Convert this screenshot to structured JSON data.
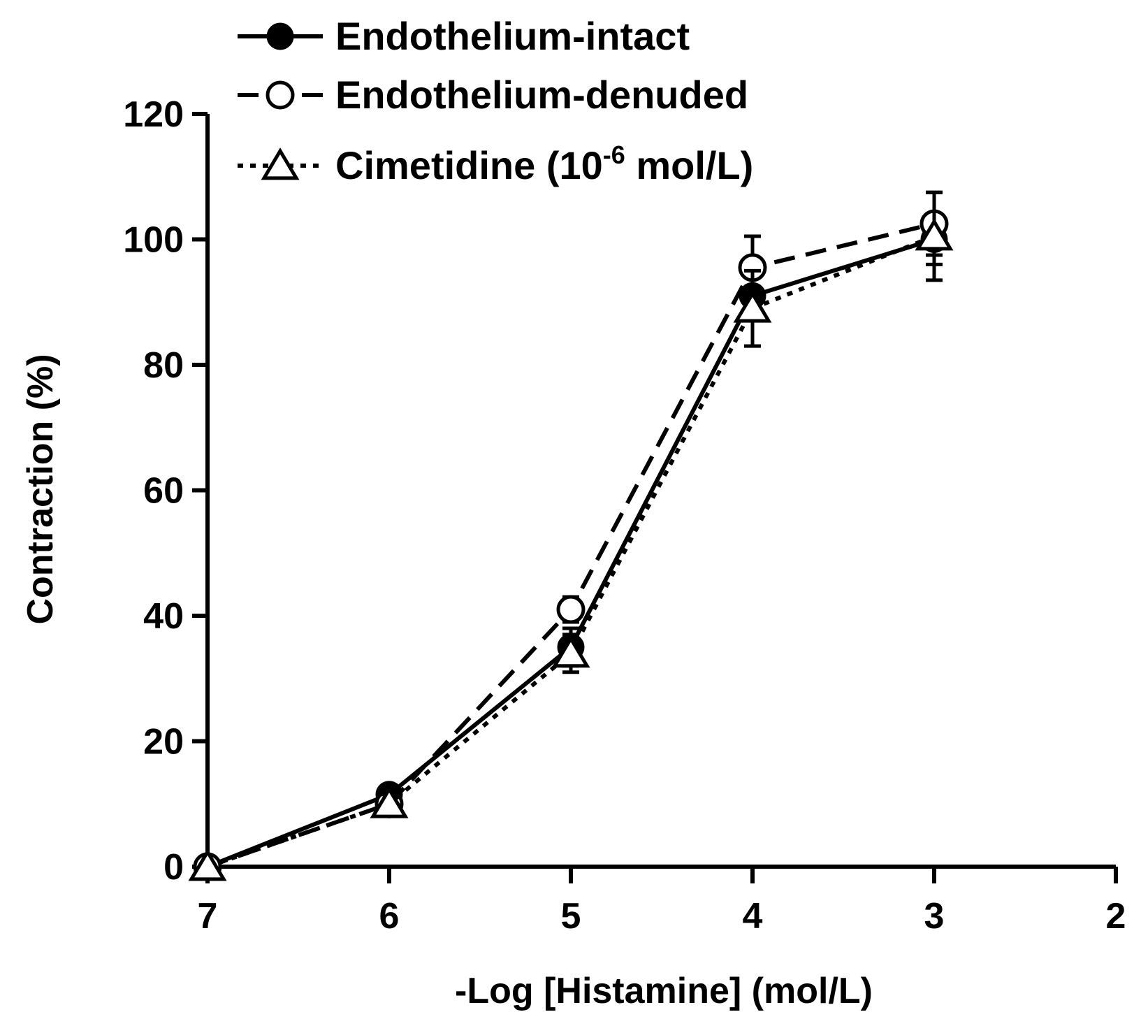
{
  "chart_data": {
    "type": "line",
    "xlabel": "-Log [Histamine] (mol/L)",
    "ylabel": "Contraction (%)",
    "xlim": [
      7,
      2
    ],
    "ylim": [
      0,
      120
    ],
    "x_ticks": [
      "7",
      "6",
      "5",
      "4",
      "3",
      "2"
    ],
    "y_ticks": [
      "0",
      "20",
      "40",
      "60",
      "80",
      "100",
      "120"
    ],
    "legend": {
      "position": "top-left",
      "items": [
        {
          "label": "Endothelium-intact"
        },
        {
          "label": "Endothelium-denuded"
        },
        {
          "label_main": "Cimetidine (10",
          "label_sup": "-6",
          "label_end": " mol/L)"
        }
      ]
    },
    "series": [
      {
        "name": "Endothelium-intact",
        "marker": "filled-circle",
        "line": "solid",
        "x": [
          7,
          6,
          5,
          4,
          3
        ],
        "y": [
          0,
          11.5,
          35,
          91,
          100
        ],
        "err": [
          0,
          1.5,
          3,
          3,
          4
        ]
      },
      {
        "name": "Endothelium-denuded",
        "marker": "open-circle",
        "line": "dashed",
        "x": [
          7,
          6,
          5,
          4,
          3
        ],
        "y": [
          0,
          10,
          41,
          95.5,
          102.5
        ],
        "err": [
          0,
          1.5,
          2,
          5,
          5
        ]
      },
      {
        "name": "Cimetidine (10-6 mol/L)",
        "marker": "open-triangle",
        "line": "dotted",
        "x": [
          7,
          6,
          5,
          4,
          3
        ],
        "y": [
          0,
          10,
          34,
          89,
          100.5
        ],
        "err": [
          0,
          1.5,
          3,
          6,
          7
        ]
      }
    ],
    "colors": {
      "ink": "#000000",
      "background": "#ffffff"
    }
  }
}
